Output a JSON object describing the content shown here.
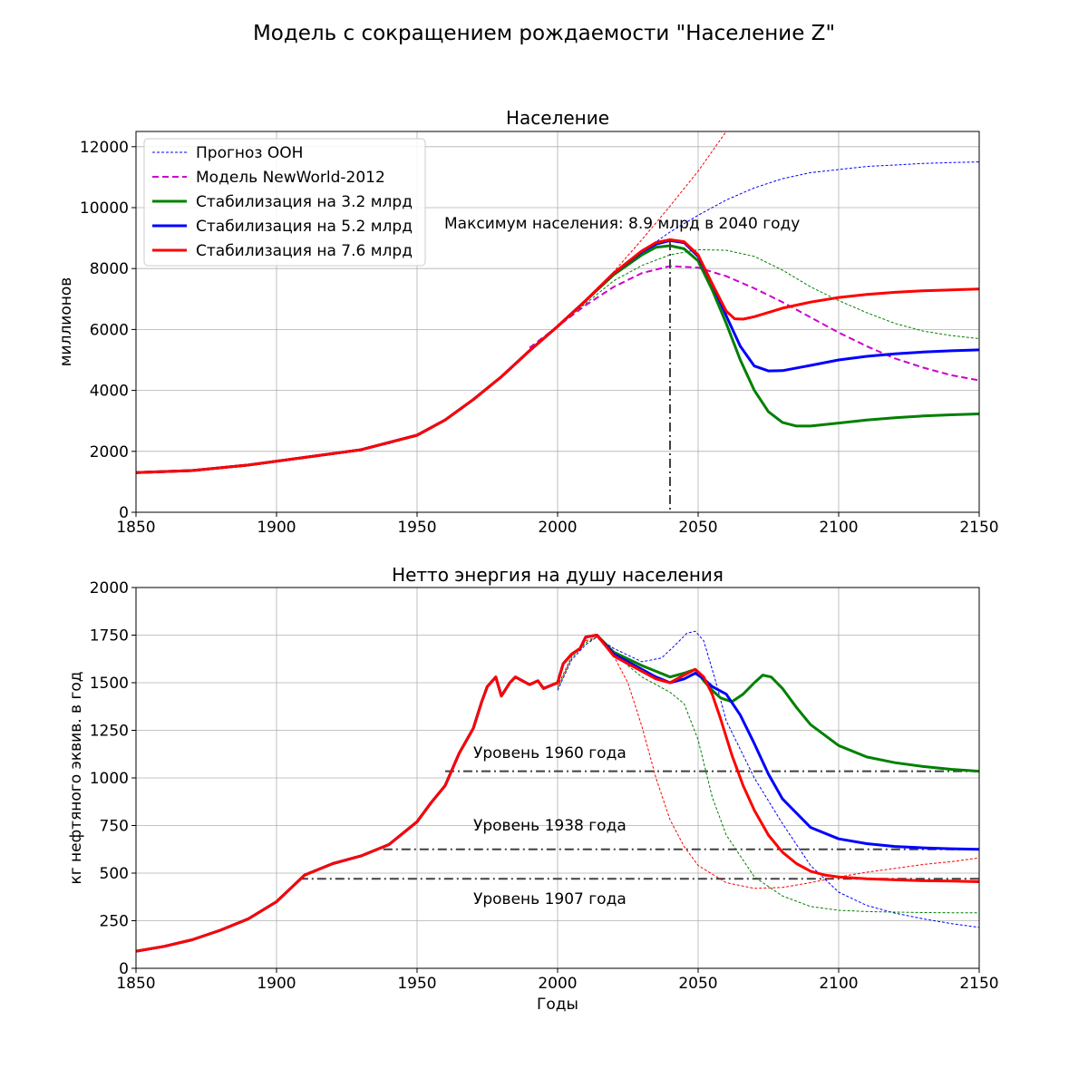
{
  "figure": {
    "suptitle": "Модель с сокращением рождаемости \"Население Z\""
  },
  "colors": {
    "un": "#0000ff",
    "nw": "#cc00cc",
    "green": "#008000",
    "blue": "#0000ff",
    "red": "#ff0000",
    "ref": "#404040"
  },
  "chart_data": [
    {
      "type": "line",
      "title": "Население",
      "xlabel": "",
      "ylabel": "миллионов",
      "xlim": [
        1850,
        2150
      ],
      "ylim": [
        0,
        12500
      ],
      "xticks": [
        1850,
        1900,
        1950,
        2000,
        2050,
        2100,
        2150
      ],
      "yticks": [
        0,
        2000,
        4000,
        6000,
        8000,
        10000,
        12000
      ],
      "grid": true,
      "legend_position": "top-left",
      "legend": [
        "Прогноз ООН",
        "Модель NewWorld-2012",
        "Стабилизация на 3.2 млрд",
        "Стабилизация на 5.2 млрд",
        "Стабилизация на 7.6 млрд"
      ],
      "annotation": {
        "text": "Максимум населения: 8.9 млрд в 2040 году",
        "x": 1960,
        "y": 9500
      },
      "vline": {
        "x": 2040,
        "y_top": 8900
      },
      "series": [
        {
          "name": "Прогноз ООН",
          "color": "#0000ff",
          "style": "dashed-thin",
          "x": [
            1850,
            1860,
            1870,
            1880,
            1890,
            1900,
            1910,
            1920,
            1930,
            1940,
            1950,
            1960,
            1970,
            1980,
            1990,
            2000,
            2010,
            2020,
            2030,
            2040,
            2050,
            2060,
            2070,
            2080,
            2090,
            2100,
            2110,
            2120,
            2130,
            2140,
            2150
          ],
          "y": [
            1300,
            1350,
            1380,
            1440,
            1560,
            1700,
            1800,
            1900,
            2050,
            2250,
            2530,
            3030,
            3700,
            4450,
            5300,
            6100,
            6900,
            7800,
            8550,
            9200,
            9750,
            10250,
            10650,
            10950,
            11150,
            11250,
            11350,
            11400,
            11450,
            11480,
            11500
          ]
        },
        {
          "name": "",
          "color": "#ff0000",
          "style": "dashed-thin",
          "x": [
            2000,
            2010,
            2020,
            2030,
            2040,
            2050,
            2060
          ],
          "y": [
            6100,
            6950,
            7900,
            8950,
            10050,
            11200,
            12500
          ]
        },
        {
          "name": "",
          "color": "#008000",
          "style": "dashed-thin",
          "x": [
            2000,
            2010,
            2020,
            2030,
            2040,
            2050,
            2060,
            2070,
            2080,
            2090,
            2100,
            2110,
            2120,
            2130,
            2140,
            2150
          ],
          "y": [
            6100,
            6850,
            7600,
            8100,
            8450,
            8620,
            8600,
            8400,
            7950,
            7400,
            6950,
            6550,
            6200,
            5950,
            5800,
            5700
          ]
        },
        {
          "name": "Модель NewWorld-2012",
          "color": "#cc00cc",
          "style": "dashed",
          "x": [
            1990,
            2000,
            2010,
            2020,
            2030,
            2040,
            2050,
            2060,
            2070,
            2080,
            2090,
            2100,
            2110,
            2120,
            2130,
            2140,
            2150
          ],
          "y": [
            5400,
            6100,
            6800,
            7400,
            7850,
            8080,
            8030,
            7750,
            7350,
            6900,
            6400,
            5900,
            5450,
            5050,
            4750,
            4500,
            4330
          ]
        },
        {
          "name": "Стабилизация на 3.2 млрд",
          "color": "#008000",
          "style": "solid",
          "x": [
            1850,
            1870,
            1890,
            1910,
            1930,
            1950,
            1960,
            1970,
            1980,
            1990,
            2000,
            2010,
            2020,
            2030,
            2035,
            2040,
            2045,
            2050,
            2055,
            2060,
            2065,
            2070,
            2075,
            2080,
            2085,
            2090,
            2100,
            2110,
            2120,
            2130,
            2140,
            2150
          ],
          "y": [
            1300,
            1370,
            1550,
            1800,
            2050,
            2530,
            3030,
            3700,
            4450,
            5300,
            6100,
            6950,
            7800,
            8450,
            8700,
            8750,
            8650,
            8250,
            7300,
            6200,
            5000,
            4000,
            3300,
            2950,
            2830,
            2830,
            2930,
            3030,
            3100,
            3160,
            3200,
            3230
          ]
        },
        {
          "name": "Стабилизация на 5.2 млрд",
          "color": "#0000ff",
          "style": "solid",
          "x": [
            1850,
            1870,
            1890,
            1910,
            1930,
            1950,
            1960,
            1970,
            1980,
            1990,
            2000,
            2010,
            2020,
            2030,
            2035,
            2040,
            2045,
            2050,
            2055,
            2060,
            2065,
            2070,
            2075,
            2080,
            2090,
            2100,
            2110,
            2120,
            2130,
            2140,
            2150
          ],
          "y": [
            1300,
            1370,
            1550,
            1800,
            2050,
            2530,
            3030,
            3700,
            4450,
            5300,
            6100,
            6950,
            7850,
            8550,
            8800,
            8920,
            8850,
            8400,
            7500,
            6450,
            5450,
            4800,
            4640,
            4650,
            4820,
            5000,
            5120,
            5200,
            5260,
            5300,
            5330
          ]
        },
        {
          "name": "Стабилизация на 7.6 млрд",
          "color": "#ff0000",
          "style": "solid",
          "x": [
            1850,
            1870,
            1890,
            1910,
            1930,
            1950,
            1960,
            1970,
            1980,
            1990,
            2000,
            2010,
            2020,
            2030,
            2035,
            2040,
            2045,
            2050,
            2055,
            2060,
            2063,
            2066,
            2070,
            2080,
            2090,
            2100,
            2110,
            2120,
            2130,
            2140,
            2150
          ],
          "y": [
            1300,
            1370,
            1550,
            1800,
            2050,
            2530,
            3030,
            3700,
            4450,
            5300,
            6100,
            6950,
            7850,
            8580,
            8850,
            8950,
            8880,
            8450,
            7500,
            6600,
            6350,
            6340,
            6420,
            6700,
            6900,
            7050,
            7150,
            7220,
            7270,
            7300,
            7330
          ]
        }
      ]
    },
    {
      "type": "line",
      "title": "Нетто энергия на душу населения",
      "xlabel": "Годы",
      "ylabel": "кг нефтяного эквив. в год",
      "xlim": [
        1850,
        2150
      ],
      "ylim": [
        0,
        2000
      ],
      "xticks": [
        1850,
        1900,
        1950,
        2000,
        2050,
        2100,
        2150
      ],
      "yticks": [
        0,
        250,
        500,
        750,
        1000,
        1250,
        1500,
        1750,
        2000
      ],
      "grid": true,
      "annotations": [
        {
          "text": "Уровень 1960 года",
          "x": 1970,
          "y": 1110
        },
        {
          "text": "Уровень 1938 года",
          "x": 1970,
          "y": 735
        },
        {
          "text": "Уровень 1907 года",
          "x": 1970,
          "y": 350
        }
      ],
      "reference_lines": [
        {
          "y": 1035,
          "x_start": 1960,
          "x_end": 2150
        },
        {
          "y": 625,
          "x_start": 1938,
          "x_end": 2150
        },
        {
          "y": 470,
          "x_start": 1908,
          "x_end": 2150
        }
      ],
      "series": [
        {
          "name": "",
          "color": "#0000ff",
          "style": "dashed-thin",
          "x": [
            2000,
            2005,
            2010,
            2014,
            2020,
            2030,
            2037,
            2042,
            2046,
            2049,
            2052,
            2056,
            2060,
            2070,
            2080,
            2090,
            2100,
            2110,
            2120,
            2130,
            2140,
            2150
          ],
          "y": [
            1460,
            1620,
            1700,
            1740,
            1680,
            1610,
            1630,
            1700,
            1760,
            1770,
            1720,
            1520,
            1300,
            1000,
            760,
            540,
            400,
            330,
            290,
            260,
            235,
            215
          ]
        },
        {
          "name": "",
          "color": "#008000",
          "style": "dashed-thin",
          "x": [
            2000,
            2005,
            2010,
            2014,
            2020,
            2030,
            2040,
            2045,
            2050,
            2055,
            2060,
            2070,
            2080,
            2090,
            2100,
            2110,
            2120,
            2130,
            2140,
            2150
          ],
          "y": [
            1470,
            1630,
            1710,
            1740,
            1650,
            1530,
            1450,
            1390,
            1200,
            900,
            700,
            480,
            380,
            325,
            305,
            298,
            295,
            293,
            292,
            292
          ]
        },
        {
          "name": "",
          "color": "#ff0000",
          "style": "dashed-thin",
          "x": [
            2000,
            2005,
            2010,
            2014,
            2020,
            2025,
            2030,
            2035,
            2040,
            2045,
            2050,
            2060,
            2070,
            2080,
            2090,
            2100,
            2110,
            2120,
            2130,
            2140,
            2150
          ],
          "y": [
            1480,
            1640,
            1720,
            1740,
            1640,
            1500,
            1270,
            1000,
            780,
            640,
            540,
            450,
            420,
            425,
            450,
            480,
            505,
            525,
            545,
            560,
            580
          ]
        },
        {
          "name": "",
          "color": "#008000",
          "style": "solid",
          "x": [
            1850,
            1860,
            1870,
            1880,
            1890,
            1900,
            1905,
            1910,
            1920,
            1930,
            1940,
            1945,
            1950,
            1955,
            1960,
            1965,
            1970,
            1973,
            1975,
            1978,
            1980,
            1983,
            1985,
            1990,
            1993,
            1995,
            2000,
            2002,
            2005,
            2008,
            2010,
            2014,
            2020,
            2030,
            2035,
            2040,
            2045,
            2049,
            2052,
            2055,
            2058,
            2062,
            2066,
            2070,
            2073,
            2076,
            2080,
            2085,
            2090,
            2100,
            2110,
            2120,
            2130,
            2140,
            2150
          ],
          "y": [
            90,
            115,
            150,
            200,
            260,
            350,
            420,
            490,
            550,
            590,
            650,
            710,
            770,
            870,
            960,
            1130,
            1260,
            1400,
            1480,
            1530,
            1430,
            1500,
            1530,
            1490,
            1510,
            1470,
            1500,
            1600,
            1650,
            1680,
            1740,
            1750,
            1660,
            1590,
            1560,
            1530,
            1550,
            1570,
            1510,
            1460,
            1420,
            1400,
            1440,
            1500,
            1540,
            1530,
            1470,
            1370,
            1280,
            1170,
            1110,
            1080,
            1060,
            1045,
            1035
          ]
        },
        {
          "name": "",
          "color": "#0000ff",
          "style": "solid",
          "x": [
            1850,
            1860,
            1870,
            1880,
            1890,
            1900,
            1905,
            1910,
            1920,
            1930,
            1940,
            1945,
            1950,
            1955,
            1960,
            1965,
            1970,
            1973,
            1975,
            1978,
            1980,
            1983,
            1985,
            1990,
            1993,
            1995,
            2000,
            2002,
            2005,
            2008,
            2010,
            2014,
            2020,
            2030,
            2035,
            2040,
            2045,
            2049,
            2052,
            2055,
            2060,
            2065,
            2070,
            2075,
            2080,
            2090,
            2100,
            2110,
            2120,
            2130,
            2140,
            2150
          ],
          "y": [
            90,
            115,
            150,
            200,
            260,
            350,
            420,
            490,
            550,
            590,
            650,
            710,
            770,
            870,
            960,
            1130,
            1260,
            1400,
            1480,
            1530,
            1430,
            1500,
            1530,
            1490,
            1510,
            1470,
            1500,
            1600,
            1650,
            1680,
            1740,
            1750,
            1650,
            1570,
            1530,
            1500,
            1520,
            1550,
            1520,
            1480,
            1440,
            1330,
            1180,
            1020,
            890,
            740,
            680,
            655,
            640,
            633,
            628,
            625
          ]
        },
        {
          "name": "",
          "color": "#ff0000",
          "style": "solid",
          "x": [
            1850,
            1860,
            1870,
            1880,
            1890,
            1900,
            1905,
            1910,
            1920,
            1930,
            1940,
            1945,
            1950,
            1955,
            1960,
            1965,
            1970,
            1973,
            1975,
            1978,
            1980,
            1983,
            1985,
            1990,
            1993,
            1995,
            2000,
            2002,
            2005,
            2008,
            2010,
            2014,
            2020,
            2030,
            2035,
            2040,
            2045,
            2049,
            2052,
            2055,
            2058,
            2062,
            2066,
            2070,
            2075,
            2080,
            2085,
            2090,
            2095,
            2100,
            2110,
            2120,
            2130,
            2140,
            2150
          ],
          "y": [
            90,
            115,
            150,
            200,
            260,
            350,
            420,
            490,
            550,
            590,
            650,
            710,
            770,
            870,
            960,
            1130,
            1260,
            1400,
            1480,
            1530,
            1430,
            1500,
            1530,
            1490,
            1510,
            1470,
            1500,
            1600,
            1650,
            1680,
            1740,
            1750,
            1640,
            1560,
            1520,
            1500,
            1540,
            1570,
            1530,
            1440,
            1310,
            1120,
            960,
            830,
            700,
            610,
            550,
            510,
            490,
            480,
            470,
            465,
            460,
            458,
            455
          ]
        }
      ]
    }
  ]
}
